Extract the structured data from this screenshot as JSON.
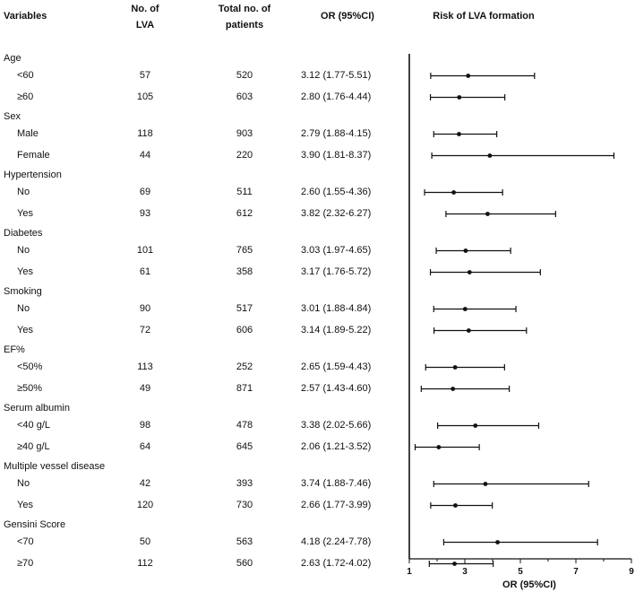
{
  "headers": {
    "variables": "Variables",
    "lva_line1": "No. of",
    "lva_line2": "LVA",
    "total_line1": "Total no. of",
    "total_line2": "patients",
    "or": "OR (95%CI)",
    "risk": "Risk of LVA formation"
  },
  "chart_data": {
    "type": "forest",
    "title": "Risk of LVA formation",
    "xlabel": "OR (95%CI)",
    "xlim": [
      1,
      9
    ],
    "xticks": [
      "1",
      "3",
      "5",
      "7",
      "9"
    ],
    "groups": [
      {
        "name": "Age",
        "rows": [
          {
            "label": "<60",
            "lva": "57",
            "total": "520",
            "or_text": "3.12 (1.77-5.51)",
            "or": 3.12,
            "lo": 1.77,
            "hi": 5.51
          },
          {
            "label": "≥60",
            "lva": "105",
            "total": "603",
            "or_text": "2.80 (1.76-4.44)",
            "or": 2.8,
            "lo": 1.76,
            "hi": 4.44
          }
        ]
      },
      {
        "name": "Sex",
        "rows": [
          {
            "label": "Male",
            "lva": "118",
            "total": "903",
            "or_text": "2.79 (1.88-4.15)",
            "or": 2.79,
            "lo": 1.88,
            "hi": 4.15
          },
          {
            "label": "Female",
            "lva": "44",
            "total": "220",
            "or_text": "3.90 (1.81-8.37)",
            "or": 3.9,
            "lo": 1.81,
            "hi": 8.37
          }
        ]
      },
      {
        "name": "Hypertension",
        "rows": [
          {
            "label": "No",
            "lva": "69",
            "total": "511",
            "or_text": "2.60 (1.55-4.36)",
            "or": 2.6,
            "lo": 1.55,
            "hi": 4.36
          },
          {
            "label": "Yes",
            "lva": "93",
            "total": "612",
            "or_text": "3.82 (2.32-6.27)",
            "or": 3.82,
            "lo": 2.32,
            "hi": 6.27
          }
        ]
      },
      {
        "name": "Diabetes",
        "rows": [
          {
            "label": "No",
            "lva": "101",
            "total": "765",
            "or_text": "3.03 (1.97-4.65)",
            "or": 3.03,
            "lo": 1.97,
            "hi": 4.65
          },
          {
            "label": "Yes",
            "lva": "61",
            "total": "358",
            "or_text": "3.17 (1.76-5.72)",
            "or": 3.17,
            "lo": 1.76,
            "hi": 5.72
          }
        ]
      },
      {
        "name": "Smoking",
        "rows": [
          {
            "label": "No",
            "lva": "90",
            "total": "517",
            "or_text": "3.01 (1.88-4.84)",
            "or": 3.01,
            "lo": 1.88,
            "hi": 4.84
          },
          {
            "label": "Yes",
            "lva": "72",
            "total": "606",
            "or_text": "3.14 (1.89-5.22)",
            "or": 3.14,
            "lo": 1.89,
            "hi": 5.22
          }
        ]
      },
      {
        "name": "EF%",
        "rows": [
          {
            "label": "<50%",
            "lva": "113",
            "total": "252",
            "or_text": "2.65 (1.59-4.43)",
            "or": 2.65,
            "lo": 1.59,
            "hi": 4.43
          },
          {
            "label": "≥50%",
            "lva": "49",
            "total": "871",
            "or_text": "2.57 (1.43-4.60)",
            "or": 2.57,
            "lo": 1.43,
            "hi": 4.6
          }
        ]
      },
      {
        "name": "Serum albumin",
        "rows": [
          {
            "label": "<40 g/L",
            "lva": "98",
            "total": "478",
            "or_text": "3.38 (2.02-5.66)",
            "or": 3.38,
            "lo": 2.02,
            "hi": 5.66
          },
          {
            "label": "≥40 g/L",
            "lva": "64",
            "total": "645",
            "or_text": "2.06 (1.21-3.52)",
            "or": 2.06,
            "lo": 1.21,
            "hi": 3.52
          }
        ]
      },
      {
        "name": "Multiple vessel disease",
        "rows": [
          {
            "label": "No",
            "lva": "42",
            "total": "393",
            "or_text": "3.74 (1.88-7.46)",
            "or": 3.74,
            "lo": 1.88,
            "hi": 7.46
          },
          {
            "label": "Yes",
            "lva": "120",
            "total": "730",
            "or_text": "2.66 (1.77-3.99)",
            "or": 2.66,
            "lo": 1.77,
            "hi": 3.99
          }
        ]
      },
      {
        "name": "Gensini Score",
        "rows": [
          {
            "label": "<70",
            "lva": "50",
            "total": "563",
            "or_text": "4.18 (2.24-7.78)",
            "or": 4.18,
            "lo": 2.24,
            "hi": 7.78
          },
          {
            "label": "≥70",
            "lva": "112",
            "total": "560",
            "or_text": "2.63 (1.72-4.02)",
            "or": 2.63,
            "lo": 1.72,
            "hi": 4.02
          }
        ]
      }
    ]
  }
}
